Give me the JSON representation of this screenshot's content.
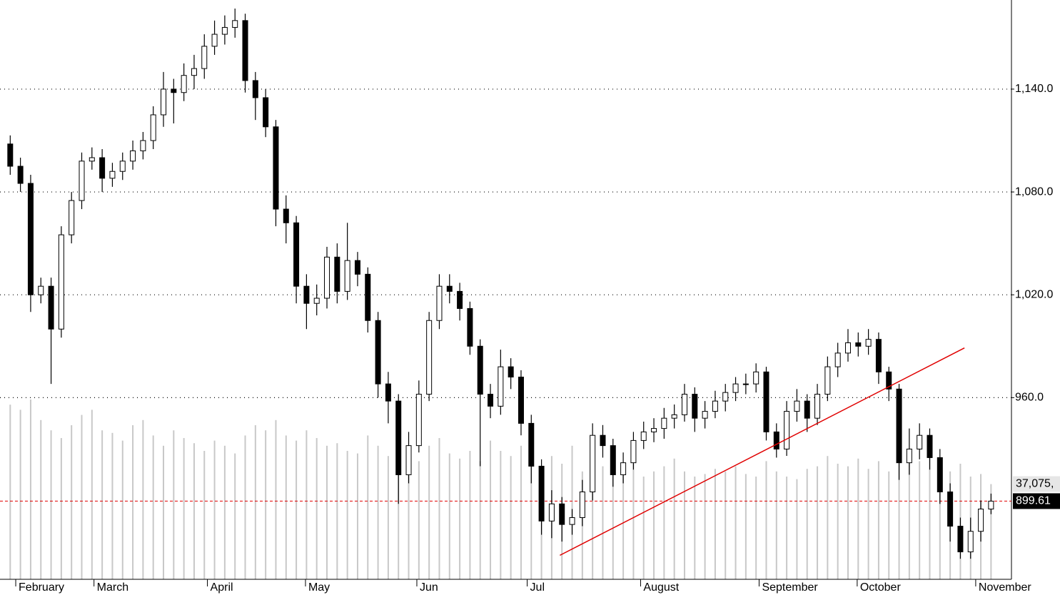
{
  "chart_data": {
    "type": "candlestick",
    "open": [
      1108,
      1095,
      1085,
      1020,
      1025,
      1000,
      1055,
      1075,
      1098,
      1100,
      1088,
      1092,
      1098,
      1104,
      1110,
      1125,
      1140,
      1138,
      1148,
      1152,
      1165,
      1172,
      1176,
      1180,
      1145,
      1135,
      1118,
      1070,
      1062,
      1025,
      1015,
      1018,
      1042,
      1022,
      1040,
      1032,
      1005,
      968,
      958,
      915,
      932,
      962,
      1005,
      1025,
      1022,
      1012,
      990,
      962,
      955,
      978,
      972,
      945,
      920,
      888,
      898,
      886,
      890,
      905,
      938,
      932,
      915,
      922,
      935,
      940,
      942,
      948,
      950,
      962,
      948,
      952,
      958,
      963,
      968,
      968,
      975,
      940,
      930,
      952,
      958,
      948,
      962,
      978,
      986,
      992,
      990,
      994,
      975,
      965,
      922,
      930,
      938,
      925,
      905,
      885,
      870,
      882,
      895
    ],
    "high": [
      1113,
      1100,
      1090,
      1030,
      1030,
      1060,
      1080,
      1103,
      1106,
      1105,
      1097,
      1103,
      1110,
      1115,
      1130,
      1150,
      1146,
      1155,
      1160,
      1172,
      1180,
      1183,
      1187,
      1184,
      1150,
      1140,
      1122,
      1078,
      1066,
      1032,
      1026,
      1048,
      1050,
      1062,
      1045,
      1036,
      1010,
      975,
      962,
      940,
      970,
      1010,
      1032,
      1032,
      1027,
      1016,
      994,
      968,
      988,
      983,
      976,
      950,
      924,
      906,
      902,
      895,
      912,
      945,
      944,
      936,
      928,
      940,
      946,
      948,
      954,
      956,
      968,
      966,
      958,
      964,
      968,
      972,
      974,
      980,
      978,
      945,
      958,
      965,
      962,
      968,
      984,
      992,
      1000,
      998,
      1000,
      998,
      978,
      968,
      942,
      945,
      942,
      930,
      910,
      890,
      890,
      900,
      904
    ],
    "low": [
      1090,
      1080,
      1010,
      1015,
      968,
      995,
      1050,
      1070,
      1093,
      1080,
      1083,
      1087,
      1093,
      1099,
      1105,
      1118,
      1120,
      1133,
      1140,
      1146,
      1160,
      1166,
      1170,
      1138,
      1122,
      1112,
      1060,
      1050,
      1015,
      1000,
      1008,
      1012,
      1015,
      1017,
      1025,
      998,
      960,
      945,
      898,
      910,
      928,
      958,
      1000,
      1015,
      1005,
      985,
      920,
      948,
      950,
      965,
      938,
      910,
      880,
      878,
      876,
      880,
      885,
      900,
      925,
      908,
      910,
      918,
      930,
      934,
      936,
      942,
      946,
      940,
      942,
      948,
      952,
      958,
      962,
      963,
      935,
      925,
      926,
      946,
      940,
      944,
      958,
      972,
      981,
      984,
      985,
      968,
      958,
      912,
      915,
      924,
      918,
      898,
      876,
      866,
      866,
      876,
      892
    ],
    "close": [
      1095,
      1085,
      1020,
      1025,
      1000,
      1055,
      1075,
      1098,
      1100,
      1088,
      1092,
      1098,
      1104,
      1110,
      1125,
      1140,
      1138,
      1148,
      1152,
      1165,
      1172,
      1176,
      1180,
      1145,
      1135,
      1118,
      1070,
      1062,
      1025,
      1015,
      1018,
      1042,
      1022,
      1040,
      1032,
      1005,
      968,
      958,
      915,
      932,
      962,
      1005,
      1025,
      1022,
      1012,
      990,
      962,
      955,
      978,
      972,
      945,
      920,
      888,
      898,
      886,
      890,
      905,
      938,
      932,
      915,
      922,
      935,
      940,
      942,
      948,
      950,
      962,
      948,
      952,
      958,
      963,
      968,
      968,
      975,
      940,
      930,
      952,
      958,
      948,
      962,
      978,
      986,
      992,
      990,
      994,
      975,
      965,
      922,
      930,
      938,
      925,
      905,
      885,
      870,
      882,
      895,
      899.61
    ],
    "volume": [
      68000,
      66000,
      70000,
      62000,
      58000,
      55000,
      60000,
      64000,
      66000,
      58000,
      57000,
      54000,
      60000,
      62000,
      56000,
      52000,
      58000,
      55000,
      53000,
      50000,
      54000,
      52000,
      49000,
      56000,
      60000,
      58000,
      62000,
      56000,
      54000,
      58000,
      55000,
      52000,
      53000,
      50000,
      49000,
      56000,
      52000,
      48000,
      55000,
      50000,
      46000,
      52000,
      55000,
      49000,
      47000,
      50000,
      46000,
      54000,
      50000,
      48000,
      52000,
      46000,
      44000,
      48000,
      45000,
      52000,
      42000,
      40000,
      44000,
      43000,
      41000,
      45000,
      40000,
      42000,
      44000,
      47000,
      42000,
      40000,
      41000,
      43000,
      42000,
      44000,
      41000,
      40000,
      46000,
      42000,
      40000,
      39000,
      43000,
      44000,
      48000,
      45000,
      44000,
      47000,
      43000,
      46000,
      42000,
      63000,
      50000,
      46000,
      48000,
      44000,
      42000,
      45000,
      40000,
      41000,
      37075
    ],
    "up_color": "#ffffff",
    "down_color": "#000000",
    "volume_color": "#c8c8c8",
    "xlim": [
      -1,
      98
    ],
    "ylim": [
      854,
      1192
    ],
    "vlim": [
      0,
      100000
    ],
    "yticks": [
      {
        "value": 960,
        "label": "960.0"
      },
      {
        "value": 1020,
        "label": "1,020.0"
      },
      {
        "value": 1080,
        "label": "1,080.0"
      },
      {
        "value": 1140,
        "label": "1,140.0"
      }
    ],
    "xticks": [
      {
        "value": 0.54,
        "label": "February"
      },
      {
        "value": 8.2,
        "label": "March"
      },
      {
        "value": 19.3,
        "label": "April"
      },
      {
        "value": 28.9,
        "label": "May"
      },
      {
        "value": 39.8,
        "label": "Jun"
      },
      {
        "value": 50.6,
        "label": "Jul"
      },
      {
        "value": 61.7,
        "label": "August"
      },
      {
        "value": 73.3,
        "label": "September"
      },
      {
        "value": 82.9,
        "label": "October"
      },
      {
        "value": 94.5,
        "label": "November"
      }
    ],
    "grid": true,
    "last_price": 899.61,
    "last_price_color": "#e00000",
    "last_volume": {
      "value": 37075,
      "label": "37,075,"
    },
    "trendline": {
      "x": [
        53.8,
        93.4
      ],
      "y": [
        868,
        989
      ],
      "color": "#e00000"
    }
  }
}
